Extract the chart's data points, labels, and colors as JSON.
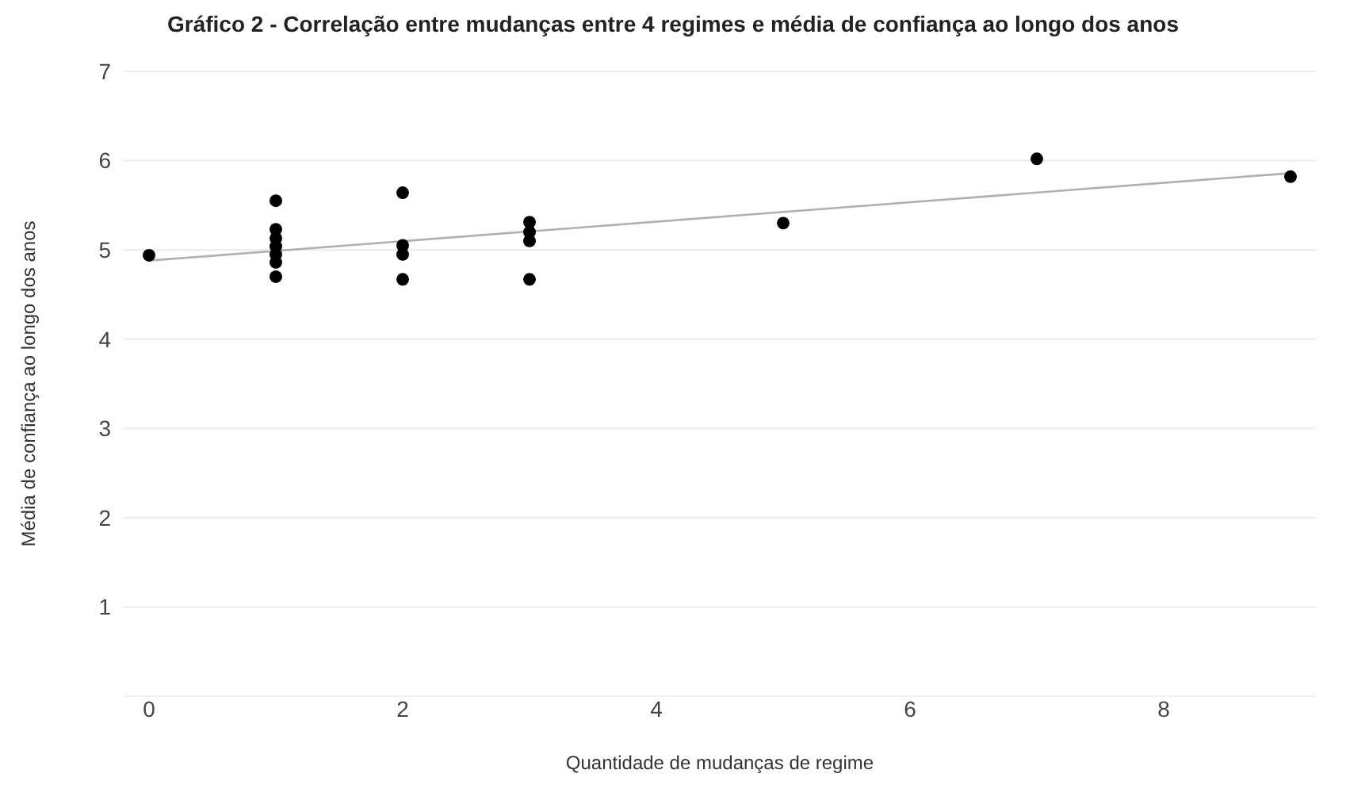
{
  "chart_data": {
    "type": "scatter",
    "title": "Gráfico 2 - Correlação entre mudanças entre 4 regimes e média de confiança ao longo dos anos",
    "xlabel": "Quantidade de mudanças de regime",
    "ylabel": "Média de confiança ao longo dos anos",
    "xlim": [
      -0.2,
      9.2
    ],
    "xticks": [
      0,
      2,
      4,
      6,
      8
    ],
    "ylim": [
      0,
      7
    ],
    "yticks": [
      1,
      2,
      3,
      4,
      5,
      6,
      7
    ],
    "grid": "y",
    "marker": "circle",
    "series": [
      {
        "type": "scatter",
        "color": "#000000",
        "x": [
          0,
          1,
          1,
          1,
          1,
          1,
          1,
          1,
          2,
          2,
          2,
          2,
          3,
          3,
          3,
          3,
          5,
          7,
          9
        ],
        "values": [
          4.94,
          5.55,
          5.23,
          5.13,
          5.04,
          4.95,
          4.86,
          4.7,
          5.64,
          5.05,
          4.95,
          4.67,
          5.31,
          5.2,
          5.1,
          4.67,
          5.3,
          6.02,
          5.82
        ]
      },
      {
        "type": "line",
        "marker": "none",
        "color": "#b0b0b0",
        "x": [
          0,
          9
        ],
        "values": [
          4.88,
          5.86
        ]
      }
    ]
  }
}
